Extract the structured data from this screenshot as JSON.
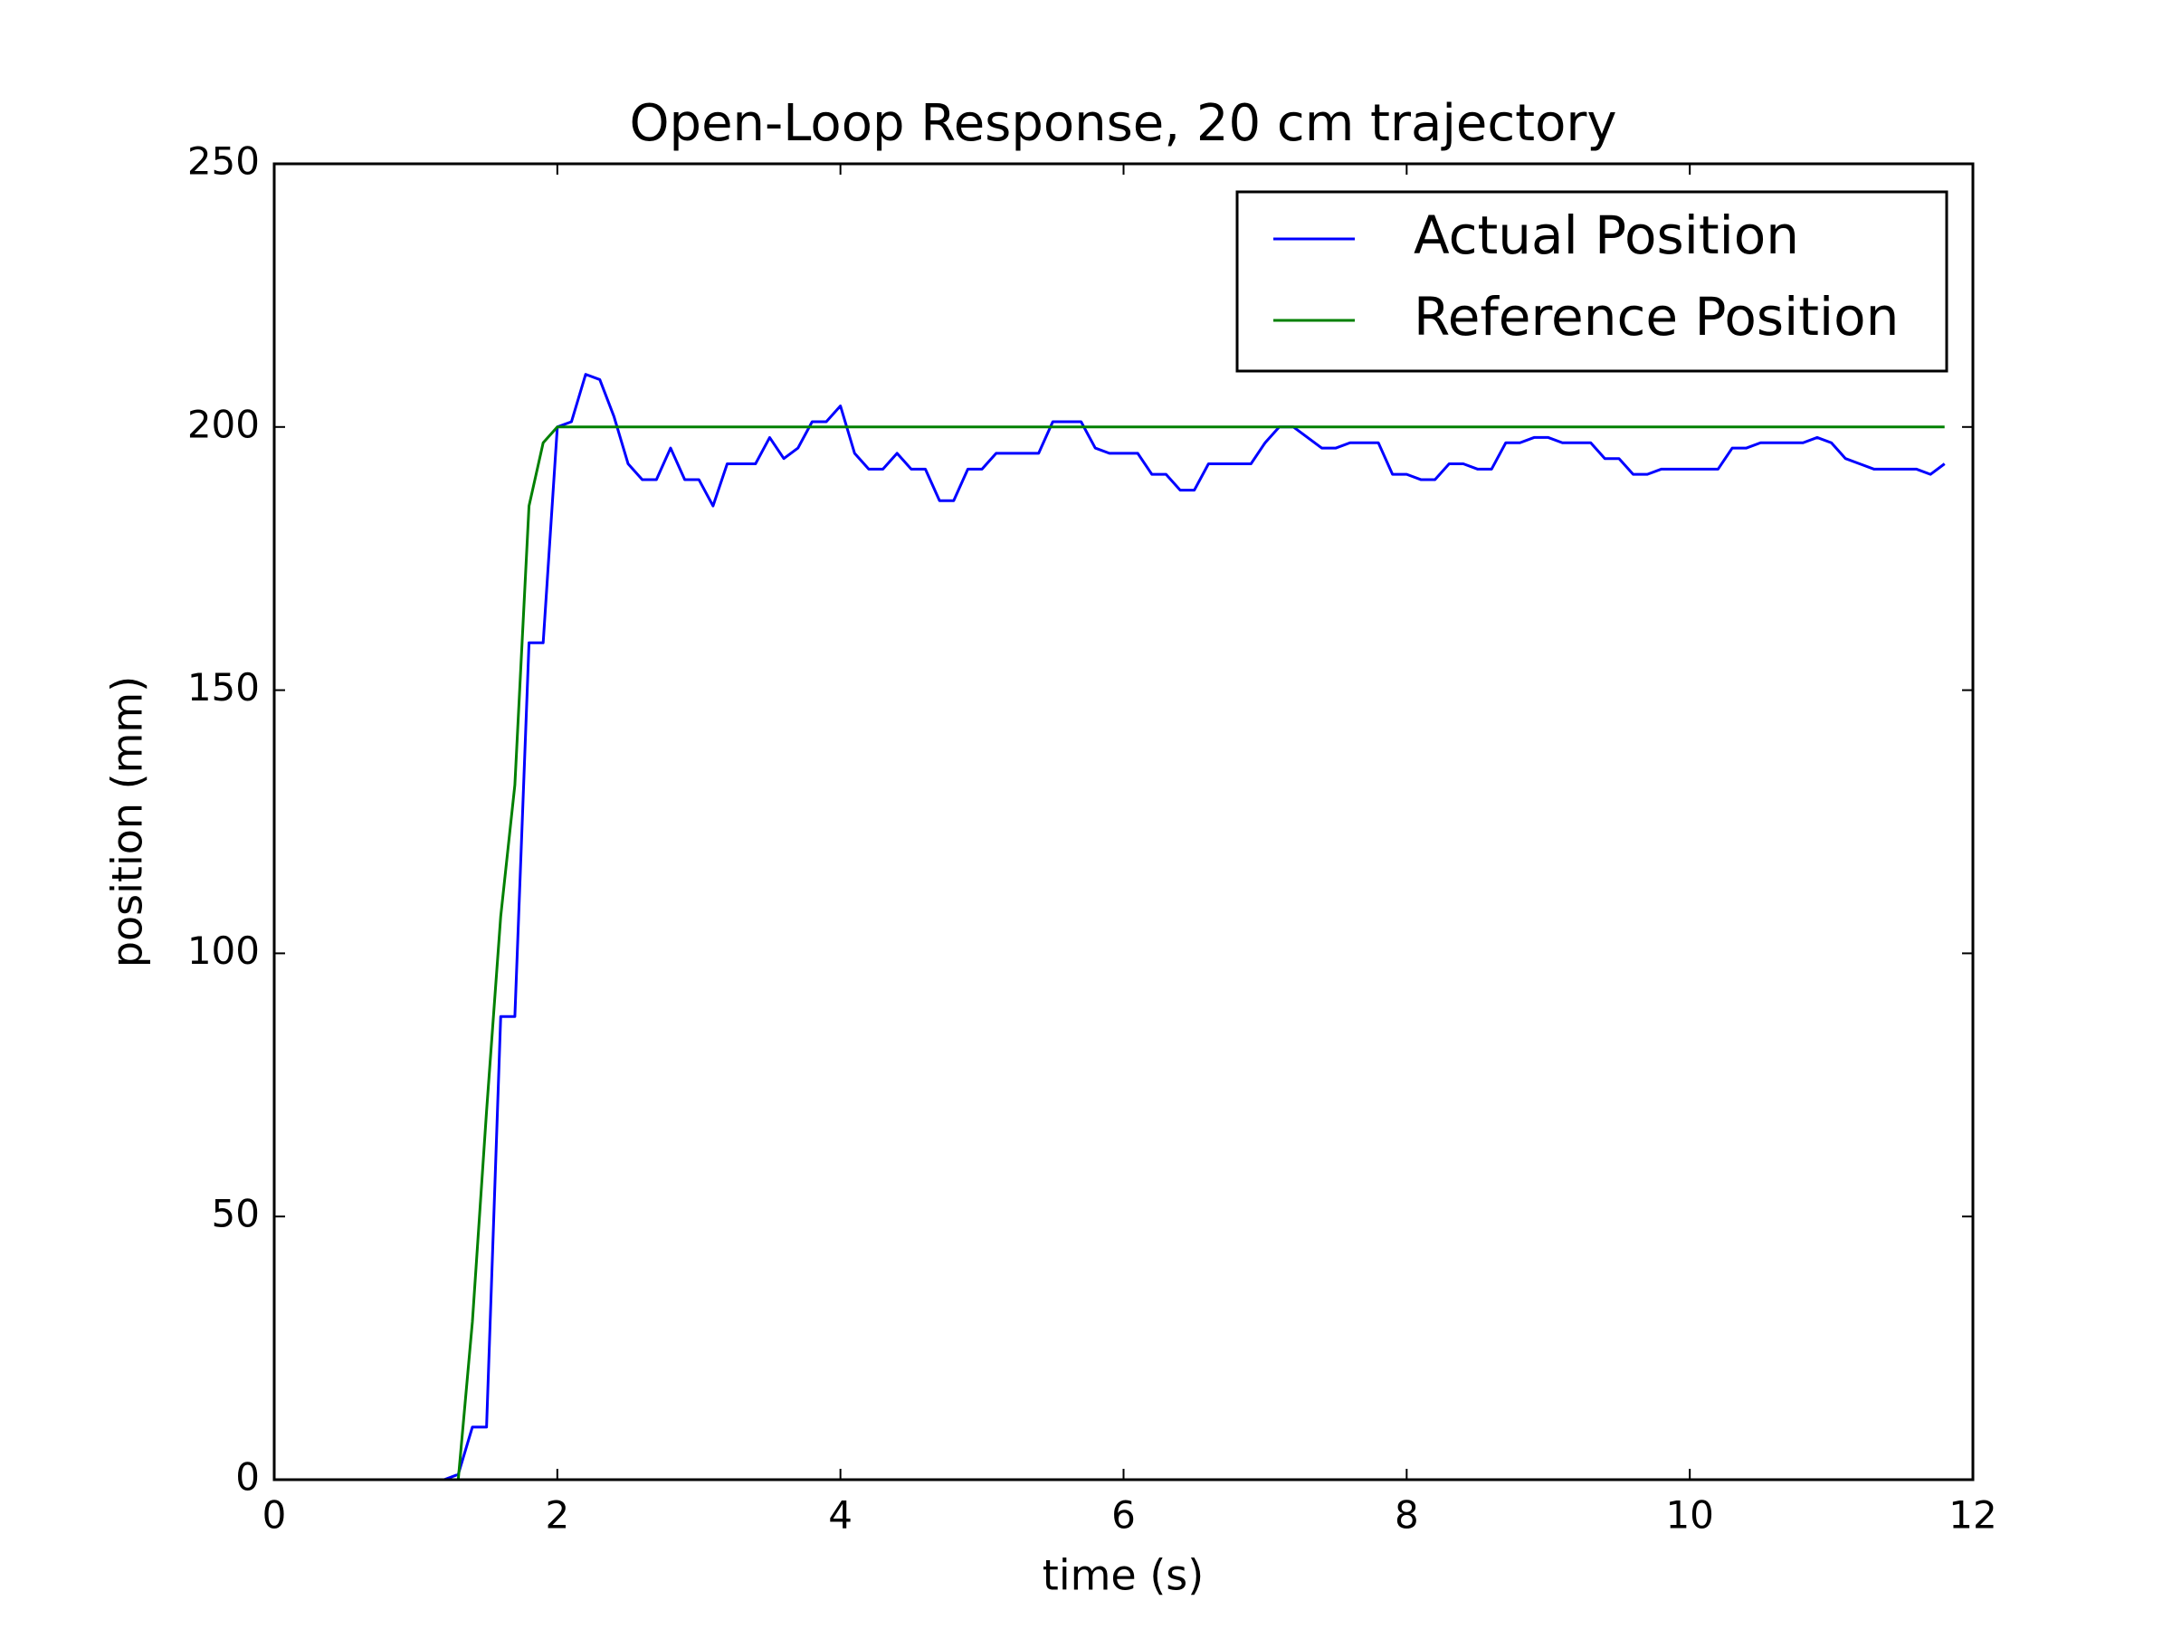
{
  "chart_data": {
    "type": "line",
    "title": "Open-Loop Response, 20 cm trajectory",
    "x_label": "time (s)",
    "y_label": "position (mm)",
    "x": [
      0,
      0.1,
      0.2,
      0.3,
      0.4,
      0.5,
      0.6,
      0.7,
      0.8,
      0.9,
      1,
      1.1,
      1.2,
      1.3,
      1.4,
      1.5,
      1.6,
      1.7,
      1.8,
      1.9,
      2,
      2.1,
      2.2,
      2.3,
      2.4,
      2.5,
      2.6,
      2.7,
      2.8,
      2.9,
      3,
      3.1,
      3.2,
      3.3,
      3.4,
      3.5,
      3.6,
      3.7,
      3.8,
      3.9,
      4,
      4.1,
      4.2,
      4.3,
      4.4,
      4.5,
      4.6,
      4.7,
      4.8,
      4.9,
      5,
      5.1,
      5.2,
      5.3,
      5.4,
      5.5,
      5.6,
      5.7,
      5.8,
      5.9,
      6,
      6.1,
      6.2,
      6.3,
      6.4,
      6.5,
      6.6,
      6.7,
      6.8,
      6.9,
      7,
      7.1,
      7.2,
      7.3,
      7.4,
      7.5,
      7.6,
      7.7,
      7.8,
      7.9,
      8,
      8.1,
      8.2,
      8.3,
      8.4,
      8.5,
      8.6,
      8.7,
      8.8,
      8.9,
      9,
      9.1,
      9.2,
      9.3,
      9.4,
      9.5,
      9.6,
      9.7,
      9.8,
      9.9,
      10,
      10.1,
      10.2,
      10.3,
      10.4,
      10.5,
      10.6,
      10.7,
      10.8,
      10.9,
      11,
      11.1,
      11.2,
      11.3,
      11.4,
      11.5,
      11.6,
      11.7,
      11.8
    ],
    "series": [
      {
        "name": "Actual Position",
        "color": "#0000ff",
        "values": [
          0,
          0,
          0,
          0,
          0,
          0,
          0,
          0,
          0,
          0,
          0,
          0,
          0,
          1,
          10,
          10,
          88,
          88,
          159,
          159,
          200,
          201,
          210,
          209,
          202,
          193,
          190,
          190,
          196,
          190,
          190,
          185,
          193,
          193,
          193,
          198,
          194,
          196,
          201,
          201,
          204,
          195,
          192,
          192,
          195,
          192,
          192,
          186,
          186,
          192,
          192,
          195,
          195,
          195,
          195,
          201,
          201,
          201,
          196,
          195,
          195,
          195,
          191,
          191,
          188,
          188,
          193,
          193,
          193,
          193,
          197,
          200,
          200,
          198,
          196,
          196,
          197,
          197,
          197,
          191,
          191,
          190,
          190,
          193,
          193,
          192,
          192,
          197,
          197,
          198,
          198,
          197,
          197,
          197,
          194,
          194,
          191,
          191,
          192,
          192,
          192,
          192,
          192,
          196,
          196,
          197,
          197,
          197,
          197,
          198,
          197,
          194,
          193,
          192,
          192,
          192,
          192,
          191,
          193
        ]
      },
      {
        "name": "Reference Position",
        "color": "#008000",
        "values": [
          0,
          0,
          0,
          0,
          0,
          0,
          0,
          0,
          0,
          0,
          0,
          0,
          0,
          0,
          30,
          70,
          107,
          132,
          185,
          197,
          200,
          200,
          200,
          200,
          200,
          200,
          200,
          200,
          200,
          200,
          200,
          200,
          200,
          200,
          200,
          200,
          200,
          200,
          200,
          200,
          200,
          200,
          200,
          200,
          200,
          200,
          200,
          200,
          200,
          200,
          200,
          200,
          200,
          200,
          200,
          200,
          200,
          200,
          200,
          200,
          200,
          200,
          200,
          200,
          200,
          200,
          200,
          200,
          200,
          200,
          200,
          200,
          200,
          200,
          200,
          200,
          200,
          200,
          200,
          200,
          200,
          200,
          200,
          200,
          200,
          200,
          200,
          200,
          200,
          200,
          200,
          200,
          200,
          200,
          200,
          200,
          200,
          200,
          200,
          200,
          200,
          200,
          200,
          200,
          200,
          200,
          200,
          200,
          200,
          200,
          200,
          200,
          200,
          200,
          200,
          200,
          200,
          200,
          200
        ]
      }
    ],
    "xlim": [
      0,
      12
    ],
    "xticks": [
      0,
      2,
      4,
      6,
      8,
      10,
      12
    ],
    "ylim": [
      0,
      250
    ],
    "yticks": [
      0,
      50,
      100,
      150,
      200,
      250
    ],
    "grid": false,
    "legend": "upper right"
  }
}
